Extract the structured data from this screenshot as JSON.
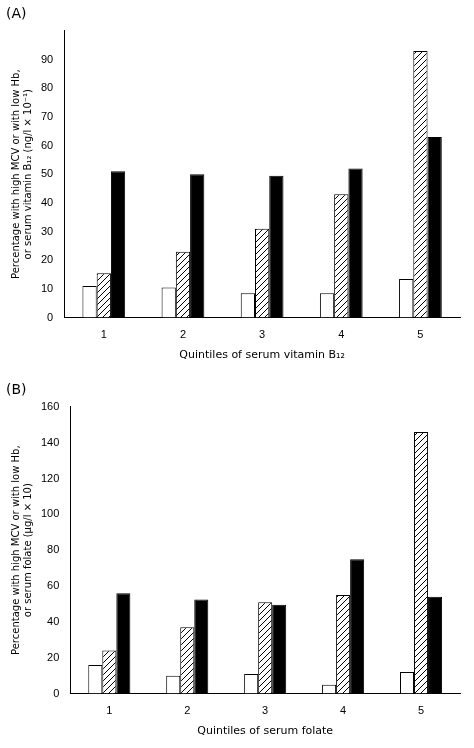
{
  "chart_data": [
    {
      "type": "bar",
      "title": "(A)",
      "x_label": "Quintiles of serum vitamin B₁₂",
      "y_label": "Percentage with high MCV or with low Hb,\nor serum vitamin B₁₂ (ng/l × 10⁻¹)",
      "categories": [
        1,
        2,
        3,
        4,
        5
      ],
      "series": [
        {
          "color": "#ffffff",
          "values": [
            11,
            10.5,
            8.5,
            8.5,
            13.5
          ]
        },
        {
          "color": "#ffffff",
          "values": [
            15.5,
            23,
            31,
            43,
            93
          ]
        },
        {
          "color": "#000000",
          "values": [
            51,
            50,
            49.5,
            52,
            63
          ]
        }
      ],
      "ylim": [
        0,
        100
      ],
      "yticks": [
        0,
        10,
        20,
        30,
        40,
        50,
        60,
        70,
        80,
        90
      ],
      "grid": false
    },
    {
      "type": "bar",
      "title": "(B)",
      "x_label": "Quintiles of serum folate",
      "y_label": "Percentage with high MCV or with low Hb,\nor serum folate (µg/l × 10)",
      "categories": [
        1,
        2,
        3,
        4,
        5
      ],
      "series": [
        {
          "color": "#ffffff",
          "values": [
            16,
            10,
            11,
            5,
            12
          ]
        },
        {
          "color": "#ffffff",
          "values": [
            24,
            37,
            51,
            55,
            146
          ]
        },
        {
          "color": "#000000",
          "values": [
            56,
            52.5,
            49.5,
            75,
            54
          ]
        }
      ],
      "ylim": [
        0,
        160
      ],
      "yticks": [
        0,
        20,
        40,
        60,
        80,
        100,
        120,
        140,
        160
      ],
      "grid": false
    }
  ]
}
